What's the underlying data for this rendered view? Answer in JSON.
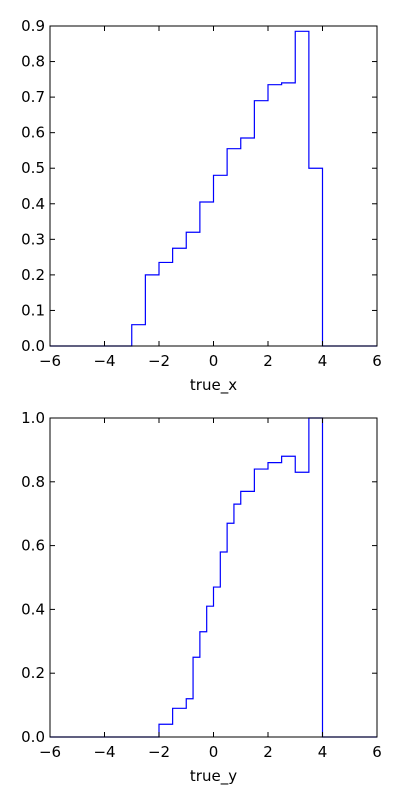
{
  "chart_data": [
    {
      "type": "line",
      "drawstyle": "steps-post",
      "xlabel": "true_x",
      "ylabel": "",
      "xlim": [
        -6,
        6
      ],
      "ylim": [
        0,
        0.9
      ],
      "xticks": [
        -6,
        -4,
        -2,
        0,
        2,
        4,
        6
      ],
      "yticks": [
        0.0,
        0.1,
        0.2,
        0.3,
        0.4,
        0.5,
        0.6,
        0.7,
        0.8,
        0.9
      ],
      "xtick_labels": [
        "−6",
        "−4",
        "−2",
        "0",
        "2",
        "4",
        "6"
      ],
      "ytick_labels": [
        "0.0",
        "0.1",
        "0.2",
        "0.3",
        "0.4",
        "0.5",
        "0.6",
        "0.7",
        "0.8",
        "0.9"
      ],
      "grid": false,
      "line_color": "#0000ff",
      "x": [
        -6.0,
        -3.0,
        -2.5,
        -2.0,
        -1.5,
        -1.0,
        -0.5,
        0.0,
        0.5,
        1.0,
        1.5,
        2.0,
        2.5,
        3.0,
        3.5,
        4.0,
        6.0
      ],
      "values": [
        0.0,
        0.06,
        0.2,
        0.235,
        0.275,
        0.32,
        0.405,
        0.48,
        0.555,
        0.585,
        0.69,
        0.735,
        0.74,
        0.885,
        0.5,
        0.0,
        0.0
      ]
    },
    {
      "type": "line",
      "drawstyle": "steps-post",
      "xlabel": "true_y",
      "ylabel": "",
      "xlim": [
        -6,
        6
      ],
      "ylim": [
        0,
        1.0
      ],
      "xticks": [
        -6,
        -4,
        -2,
        0,
        2,
        4,
        6
      ],
      "yticks": [
        0.0,
        0.2,
        0.4,
        0.6,
        0.8,
        1.0
      ],
      "xtick_labels": [
        "−6",
        "−4",
        "−2",
        "0",
        "2",
        "4",
        "6"
      ],
      "ytick_labels": [
        "0.0",
        "0.2",
        "0.4",
        "0.6",
        "0.8",
        "1.0"
      ],
      "grid": false,
      "line_color": "#0000ff",
      "x": [
        -6.0,
        -2.0,
        -1.5,
        -1.0,
        -0.75,
        -0.5,
        -0.25,
        0.0,
        0.25,
        0.5,
        0.75,
        1.0,
        1.5,
        2.0,
        2.5,
        3.0,
        3.5,
        4.0,
        6.0
      ],
      "values": [
        0.0,
        0.04,
        0.09,
        0.12,
        0.25,
        0.33,
        0.41,
        0.47,
        0.58,
        0.67,
        0.73,
        0.77,
        0.84,
        0.86,
        0.88,
        0.83,
        1.0,
        0.0,
        0.0
      ]
    }
  ]
}
